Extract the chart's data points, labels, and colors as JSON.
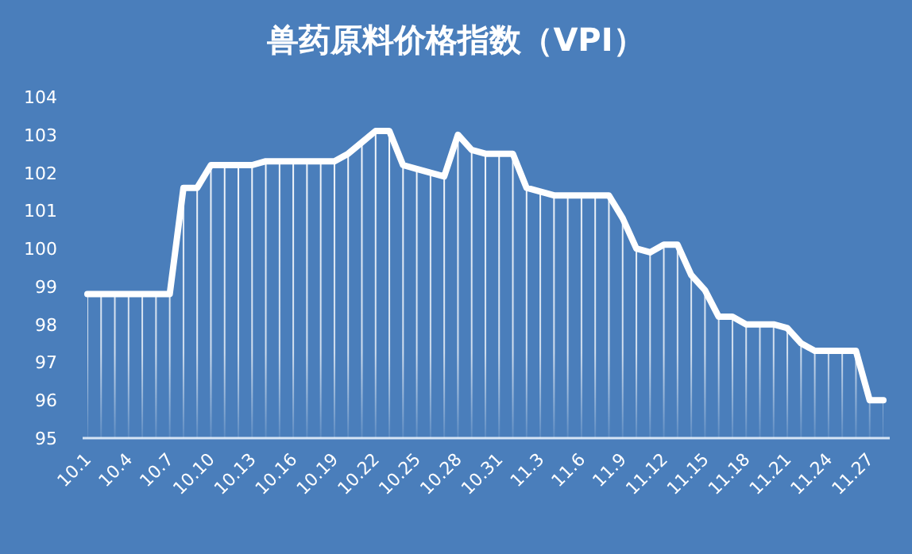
{
  "chart_data": {
    "type": "area",
    "title": "兽药原料价格指数（VPI）",
    "categories": [
      "10.1",
      null,
      null,
      "10.4",
      null,
      null,
      "10.7",
      null,
      null,
      "10.10",
      null,
      null,
      "10.13",
      null,
      null,
      "10.16",
      null,
      null,
      "10.19",
      null,
      null,
      "10.22",
      null,
      null,
      "10.25",
      null,
      null,
      "10.28",
      null,
      null,
      "10.31",
      null,
      null,
      "11.3",
      null,
      null,
      "11.6",
      null,
      null,
      "11.9",
      null,
      null,
      "11.12",
      null,
      null,
      "11.15",
      null,
      null,
      "11.18",
      null,
      null,
      "11.21",
      null,
      null,
      "11.24",
      null,
      null,
      "11.27",
      null
    ],
    "series": [
      {
        "color": "#ffffff",
        "values": [
          98.8,
          98.8,
          98.8,
          98.8,
          98.8,
          98.8,
          98.8,
          101.6,
          101.6,
          102.2,
          102.2,
          102.2,
          102.2,
          102.3,
          102.3,
          102.3,
          102.3,
          102.3,
          102.3,
          102.5,
          102.8,
          103.1,
          103.1,
          102.2,
          102.1,
          102.0,
          101.9,
          103.0,
          102.6,
          102.5,
          102.5,
          102.5,
          101.6,
          101.5,
          101.4,
          101.4,
          101.4,
          101.4,
          101.4,
          100.8,
          100.0,
          99.9,
          100.1,
          100.1,
          99.3,
          98.9,
          98.2,
          98.2,
          98.0,
          98.0,
          98.0,
          97.9,
          97.5,
          97.3,
          97.3,
          97.3,
          97.3,
          96.0,
          96.0
        ]
      }
    ],
    "ylim": [
      95,
      104
    ],
    "yticks": [
      95,
      96,
      97,
      98,
      99,
      100,
      101,
      102,
      103,
      104
    ],
    "grid": false
  }
}
